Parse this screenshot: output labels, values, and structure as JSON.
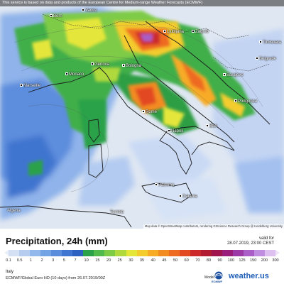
{
  "header": {
    "notice": "This service is based on data and products of the European Centre for Medium-range Weather Forecasts (ECMWF)"
  },
  "map": {
    "attribution": "Map data © OpenStreetMap contributors, rendering GIScience Research Group @ Heidelberg University",
    "cities": [
      {
        "name": "Bern",
        "kind": "city"
      },
      {
        "name": "Vaduz",
        "kind": "city"
      },
      {
        "name": "Ljubljana",
        "kind": "city"
      },
      {
        "name": "Zagreb",
        "kind": "city"
      },
      {
        "name": "Timisoara",
        "kind": "city"
      },
      {
        "name": "Belgrade",
        "kind": "city"
      },
      {
        "name": "Sarajevo",
        "kind": "city"
      },
      {
        "name": "Podgorica",
        "kind": "city"
      },
      {
        "name": "Monaco",
        "kind": "city"
      },
      {
        "name": "Marseille",
        "kind": "city"
      },
      {
        "name": "Bologna",
        "kind": "city"
      },
      {
        "name": "Genova",
        "kind": "city"
      },
      {
        "name": "Rome",
        "kind": "city"
      },
      {
        "name": "Napoli",
        "kind": "city"
      },
      {
        "name": "Bari",
        "kind": "city"
      },
      {
        "name": "Palermo",
        "kind": "city"
      },
      {
        "name": "Catania",
        "kind": "city"
      },
      {
        "name": "Algeria",
        "kind": "country"
      },
      {
        "name": "Tunisia",
        "kind": "country"
      }
    ]
  },
  "legend": {
    "title": "Precipitation, 24h (mm)",
    "valid_label": "valid for",
    "valid_time": "28.07.2019, 23:00 CEST",
    "ticks": [
      "0.1",
      "0.5",
      "1",
      "2",
      "3",
      "5",
      "7",
      "10",
      "15",
      "20",
      "25",
      "30",
      "35",
      "40",
      "45",
      "50",
      "60",
      "70",
      "80",
      "90",
      "100",
      "125",
      "150",
      "200",
      "300"
    ],
    "colors": [
      "#d4e1f5",
      "#b6cdf0",
      "#93b8ec",
      "#74a3e5",
      "#5a8edc",
      "#3f76d1",
      "#2c61c1",
      "#2aa24a",
      "#50bb4a",
      "#7ecb46",
      "#b0d93d",
      "#e5e63a",
      "#f5cc2e",
      "#f7ab27",
      "#f38b23",
      "#ee6b22",
      "#e24a22",
      "#cc2a2a",
      "#b11c33",
      "#a0154d",
      "#9a1d7a",
      "#9b3aa6",
      "#a95fc7",
      "#c08ee0",
      "#ddc0f0"
    ],
    "region": "Italy",
    "model_line": "ECMWF/Global Euro HD (10 days) from 26.07.2019/00Z",
    "model_label": "Model:",
    "ecmwf_text": "ECMWF",
    "brand": "weather.us"
  }
}
